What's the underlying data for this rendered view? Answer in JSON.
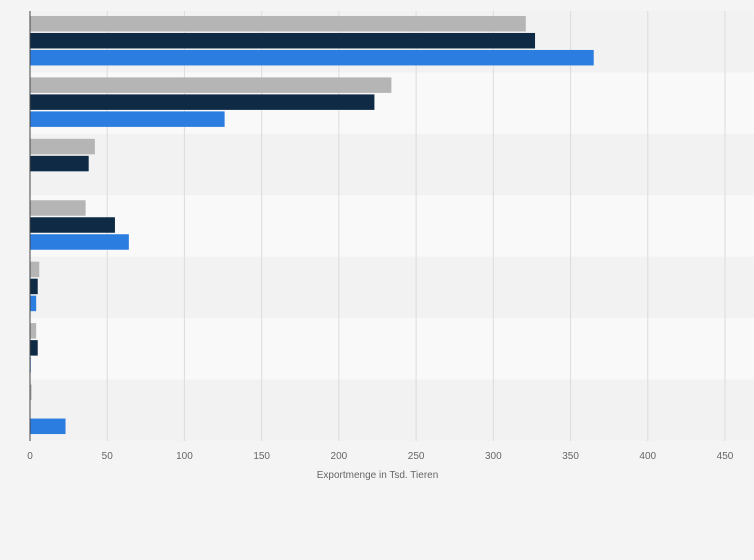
{
  "chart_data": {
    "type": "bar",
    "orientation": "horizontal",
    "title": "",
    "xlabel": "Exportmenge in Tsd. Tieren",
    "ylabel": "",
    "xlim": [
      0,
      450
    ],
    "xticks": [
      0,
      50,
      100,
      150,
      200,
      250,
      300,
      350,
      400,
      450
    ],
    "grid": true,
    "legend": "none",
    "categories": [
      "",
      "",
      "",
      "",
      "",
      "",
      ""
    ],
    "series": [
      {
        "color": "#b5b5b5",
        "values": [
          321,
          234,
          42,
          36,
          6,
          4,
          1
        ]
      },
      {
        "color": "#0f2a44",
        "values": [
          327,
          223,
          38,
          55,
          5,
          5,
          0
        ]
      },
      {
        "color": "#2b7de0",
        "values": [
          365,
          126,
          0,
          64,
          4,
          0.5,
          23
        ]
      }
    ],
    "colors": {
      "background": "#f4f4f4",
      "band_light": "#f9f9f9",
      "band_dark": "#f2f2f2",
      "grid": "#dcdcdc",
      "axis": "#444444"
    }
  }
}
